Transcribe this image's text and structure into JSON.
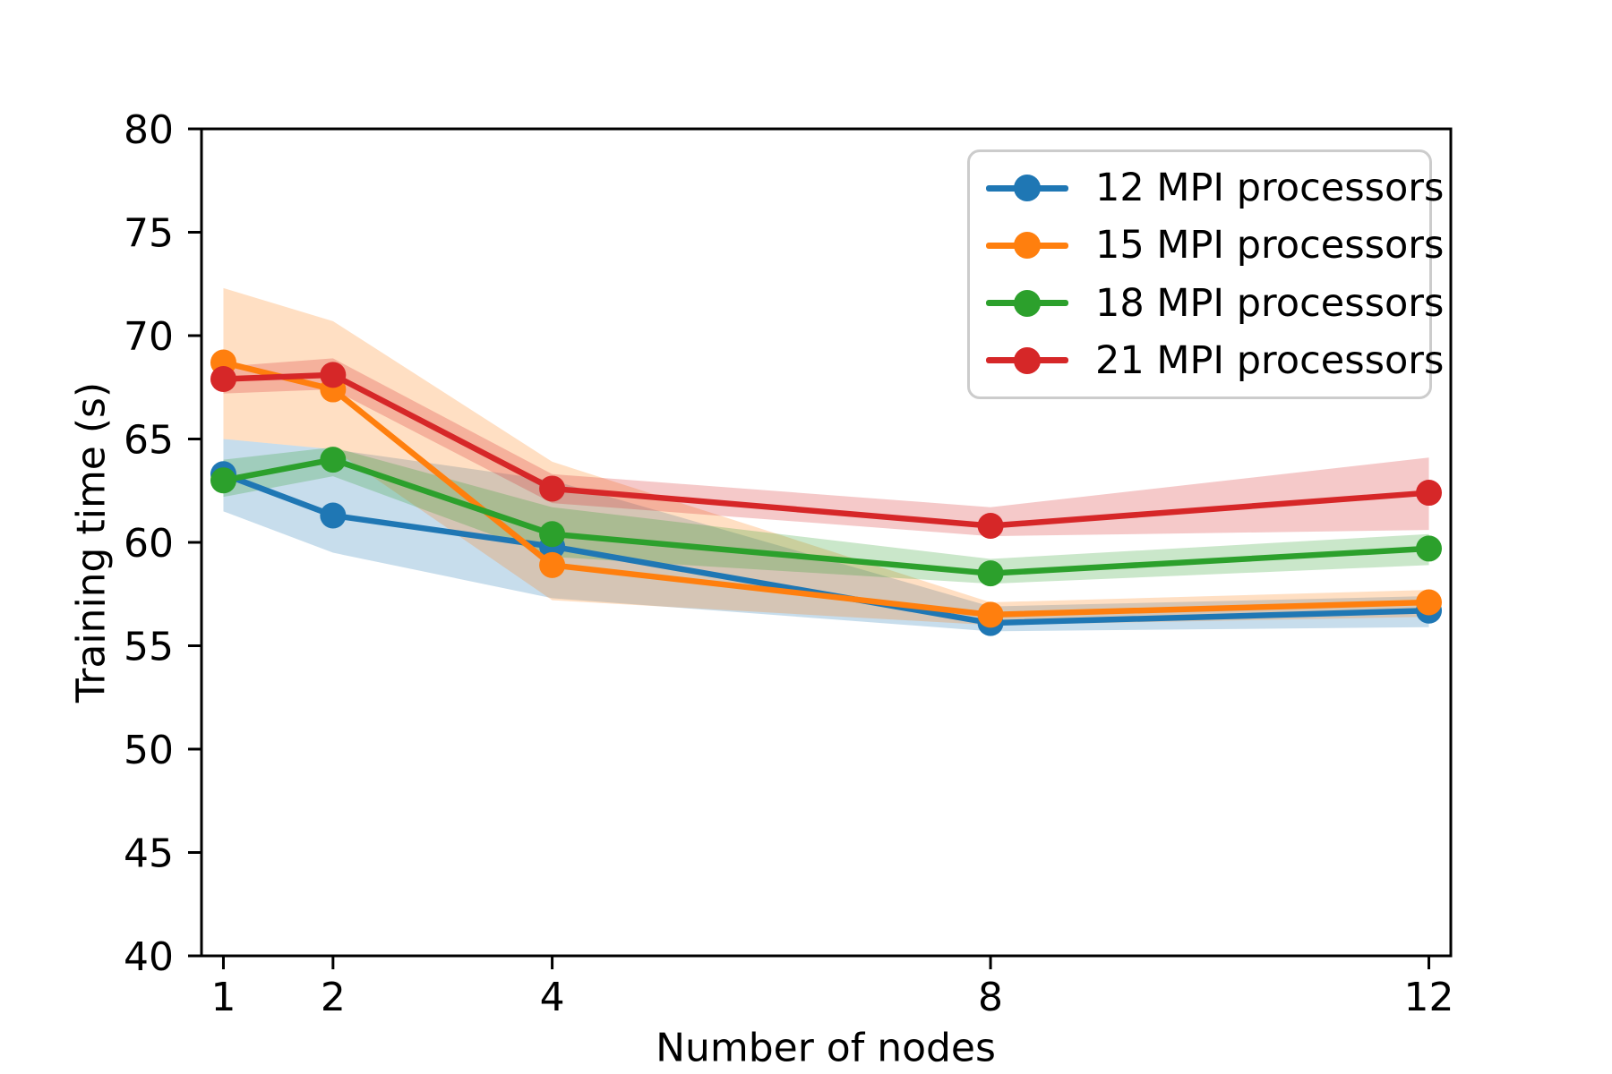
{
  "chart_data": {
    "type": "line",
    "title": "",
    "xlabel": "Number of nodes",
    "ylabel": "Training time (s)",
    "x": [
      1,
      2,
      4,
      8,
      12
    ],
    "x_tick_labels": [
      "1",
      "2",
      "4",
      "8",
      "12"
    ],
    "y_ticks": [
      40,
      45,
      50,
      55,
      60,
      65,
      70,
      75,
      80
    ],
    "xlim": [
      0.8,
      12.2
    ],
    "ylim": [
      40,
      80
    ],
    "grid": false,
    "legend_position": "upper right",
    "band_opacity": 0.25,
    "axis_color": "#000000",
    "series": [
      {
        "name": "12 MPI processors",
        "color": "#1f77b4",
        "values": [
          63.3,
          61.3,
          59.8,
          56.1,
          56.7
        ],
        "band_lower": [
          61.5,
          59.5,
          57.3,
          55.7,
          55.9
        ],
        "band_upper": [
          65.0,
          64.5,
          63.0,
          56.9,
          57.4
        ]
      },
      {
        "name": "15 MPI processors",
        "color": "#ff7f0e",
        "values": [
          68.7,
          67.4,
          58.9,
          56.5,
          57.1
        ],
        "band_lower": [
          65.0,
          64.5,
          57.2,
          56.0,
          56.4
        ],
        "band_upper": [
          72.3,
          70.7,
          63.9,
          57.1,
          57.7
        ]
      },
      {
        "name": "18 MPI processors",
        "color": "#2ca02c",
        "values": [
          63.0,
          64.0,
          60.4,
          58.5,
          59.7
        ],
        "band_lower": [
          62.2,
          63.2,
          59.3,
          58.0,
          58.9
        ],
        "band_upper": [
          64.0,
          64.6,
          61.7,
          59.2,
          60.4
        ]
      },
      {
        "name": "21 MPI processors",
        "color": "#d62728",
        "values": [
          67.9,
          68.1,
          62.6,
          60.8,
          62.4
        ],
        "band_lower": [
          67.2,
          67.4,
          61.9,
          60.3,
          60.6
        ],
        "band_upper": [
          68.5,
          68.9,
          63.3,
          61.7,
          64.1
        ]
      }
    ]
  }
}
